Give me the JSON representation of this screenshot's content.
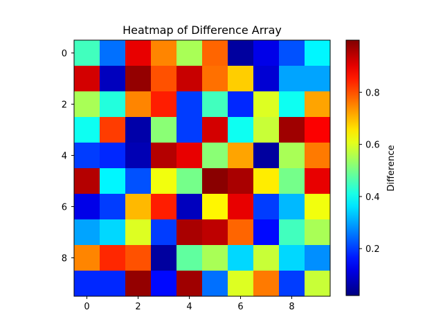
{
  "chart_data": {
    "type": "heatmap",
    "title": "Heatmap of Difference Array",
    "xlabel": "",
    "ylabel": "",
    "colormap": "jet",
    "rows": 10,
    "cols": 10,
    "x_ticks": [
      0,
      2,
      4,
      6,
      8
    ],
    "y_ticks": [
      0,
      2,
      4,
      6,
      8
    ],
    "colorbar": {
      "label": "Difference",
      "range": [
        0.02,
        1.0
      ],
      "ticks": [
        0.2,
        0.4,
        0.6,
        0.8
      ],
      "tick_labels": [
        "0.2",
        "0.4",
        "0.6",
        "0.8"
      ]
    },
    "values": [
      [
        0.45,
        0.25,
        0.9,
        0.75,
        0.55,
        0.78,
        0.05,
        0.12,
        0.22,
        0.38
      ],
      [
        0.92,
        0.08,
        0.98,
        0.8,
        0.93,
        0.77,
        0.68,
        0.1,
        0.3,
        0.3
      ],
      [
        0.55,
        0.42,
        0.75,
        0.85,
        0.2,
        0.45,
        0.18,
        0.6,
        0.4,
        0.72
      ],
      [
        0.4,
        0.82,
        0.06,
        0.52,
        0.2,
        0.92,
        0.4,
        0.58,
        0.97,
        0.88
      ],
      [
        0.2,
        0.18,
        0.07,
        0.95,
        0.9,
        0.52,
        0.72,
        0.05,
        0.55,
        0.76
      ],
      [
        0.95,
        0.38,
        0.22,
        0.62,
        0.5,
        0.99,
        0.96,
        0.65,
        0.5,
        0.9
      ],
      [
        0.12,
        0.2,
        0.7,
        0.85,
        0.08,
        0.64,
        0.9,
        0.2,
        0.32,
        0.62
      ],
      [
        0.3,
        0.35,
        0.6,
        0.2,
        0.96,
        0.94,
        0.78,
        0.15,
        0.45,
        0.55
      ],
      [
        0.75,
        0.84,
        0.8,
        0.05,
        0.48,
        0.55,
        0.35,
        0.58,
        0.35,
        0.28
      ],
      [
        0.18,
        0.18,
        0.98,
        0.15,
        0.97,
        0.25,
        0.6,
        0.76,
        0.2,
        0.58
      ]
    ]
  }
}
